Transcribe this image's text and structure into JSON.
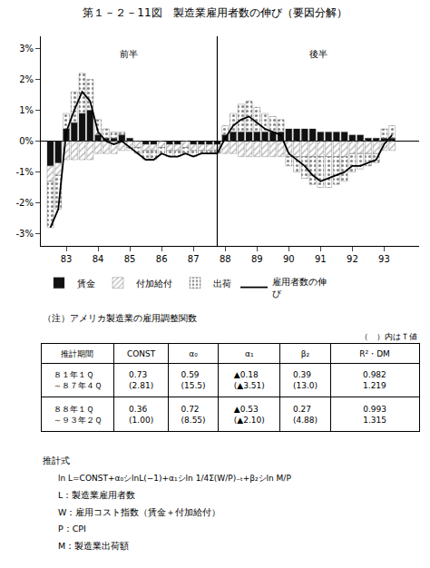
{
  "chart_data": {
    "type": "bar",
    "stacked": true,
    "title": "第１－２－11図　製造業雇用者数の伸び（要因分解）",
    "x": [
      82.5,
      82.75,
      83,
      83.25,
      83.5,
      83.75,
      84,
      84.25,
      84.5,
      84.75,
      85,
      85.25,
      85.5,
      85.75,
      86,
      86.25,
      86.5,
      86.75,
      87,
      87.25,
      87.5,
      87.75,
      88,
      88.25,
      88.5,
      88.75,
      89,
      89.25,
      89.5,
      89.75,
      90,
      90.25,
      90.5,
      90.75,
      91,
      91.25,
      91.5,
      91.75,
      92,
      92.25,
      92.5,
      92.75,
      93,
      93.25
    ],
    "xlim": [
      82.2,
      94.1
    ],
    "xticks": [
      83,
      84,
      85,
      86,
      87,
      88,
      89,
      90,
      91,
      92,
      93
    ],
    "ylim": [
      -0.034,
      0.034
    ],
    "yticks": [
      {
        "value": -0.03,
        "label": "-3%"
      },
      {
        "value": -0.02,
        "label": "-2%"
      },
      {
        "value": -0.01,
        "label": "-1%"
      },
      {
        "value": 0.0,
        "label": "0%"
      },
      {
        "value": 0.01,
        "label": "1%"
      },
      {
        "value": 0.02,
        "label": "2%"
      },
      {
        "value": 0.03,
        "label": "3%"
      }
    ],
    "grid": false,
    "series": [
      {
        "name": "賃金",
        "color": "#111111",
        "values": [
          -0.008,
          -0.007,
          0.004,
          0.006,
          0.009,
          0.01,
          0.002,
          0.001,
          0.001,
          0.002,
          0.001,
          0.0,
          -0.001,
          -0.001,
          0.0,
          -0.001,
          -0.001,
          0.0,
          -0.001,
          -0.001,
          -0.001,
          -0.001,
          0.002,
          0.003,
          0.003,
          0.003,
          0.003,
          0.003,
          0.003,
          0.003,
          0.004,
          0.004,
          0.004,
          0.004,
          0.003,
          0.003,
          0.003,
          0.003,
          0.002,
          0.002,
          0.001,
          0.001,
          0.001,
          0.001
        ]
      },
      {
        "name": "付加給付",
        "color": "#777777",
        "values": [
          -0.005,
          -0.004,
          -0.006,
          -0.006,
          -0.006,
          -0.006,
          -0.004,
          -0.004,
          -0.004,
          -0.003,
          -0.002,
          -0.002,
          -0.002,
          -0.002,
          -0.002,
          -0.002,
          -0.002,
          -0.002,
          -0.002,
          -0.002,
          -0.002,
          -0.002,
          -0.004,
          -0.004,
          -0.005,
          -0.005,
          -0.005,
          -0.005,
          -0.005,
          -0.005,
          -0.005,
          -0.005,
          -0.005,
          -0.005,
          -0.005,
          -0.005,
          -0.005,
          -0.005,
          -0.004,
          -0.004,
          -0.004,
          -0.004,
          -0.003,
          -0.003
        ]
      },
      {
        "name": "出荷",
        "color": "#cccccc",
        "values": [
          -0.015,
          -0.011,
          0.005,
          0.01,
          0.013,
          0.01,
          0.005,
          0.003,
          0.002,
          0.001,
          -0.001,
          -0.002,
          -0.003,
          -0.003,
          -0.002,
          -0.002,
          -0.002,
          -0.002,
          -0.002,
          -0.001,
          -0.001,
          -0.001,
          0.003,
          0.006,
          0.009,
          0.01,
          0.008,
          0.006,
          0.005,
          0.004,
          -0.003,
          -0.005,
          -0.007,
          -0.009,
          -0.01,
          -0.01,
          -0.009,
          -0.008,
          -0.006,
          -0.005,
          -0.004,
          -0.003,
          0.003,
          0.004
        ]
      },
      {
        "name": "雇用者数の伸\nび",
        "type": "line",
        "color": "#000000",
        "values": [
          -0.028,
          -0.022,
          0.003,
          0.01,
          0.016,
          0.013,
          0.003,
          0.0,
          -0.001,
          0.0,
          -0.002,
          -0.004,
          -0.006,
          -0.006,
          -0.004,
          -0.005,
          -0.005,
          -0.004,
          -0.005,
          -0.004,
          -0.004,
          -0.004,
          0.001,
          0.005,
          0.007,
          0.008,
          0.006,
          0.004,
          0.003,
          0.002,
          -0.004,
          -0.006,
          -0.008,
          -0.011,
          -0.013,
          -0.012,
          -0.011,
          -0.01,
          -0.008,
          -0.008,
          -0.007,
          -0.006,
          -0.001,
          0.002
        ]
      }
    ],
    "divider": 87.75,
    "annotations": [
      {
        "text": "前半"
      },
      {
        "text": "後半"
      }
    ],
    "note": "（注）アメリカ製造業の雇用調整関数",
    "table": {
      "note": "（　）内はＴ値",
      "header": [
        "推計期間",
        "CONST",
        "α₀",
        "α₁",
        "β₂",
        "R²・DM"
      ],
      "rows": [
        [
          "８１年１Ｑ\n～８７年４Ｑ",
          "0.73\n(2.81)",
          "0.59\n(15.5)",
          "▲0.18\n(▲3.51)",
          "0.39\n(13.0)",
          "0.982\n1.219"
        ],
        [
          "８８年１Ｑ\n～９３年２Ｑ",
          "0.36\n(1.00)",
          "0.72\n(8.55)",
          "▲0.53\n(▲2.10)",
          "0.27\n(4.88)",
          "0.993\n1.315"
        ]
      ]
    },
    "formula": {
      "title": "推計式",
      "lines": [
        "ln L=CONST+α₀シlnL(−1)+α₁シln 1/4Σ(W/P)₋ₜ+β₂シln M/P",
        "L：製造業雇用者数",
        "W：雇用コスト指数（賃金＋付加給付）",
        "P：CPI",
        "M：製造業出荷額"
      ]
    }
  }
}
